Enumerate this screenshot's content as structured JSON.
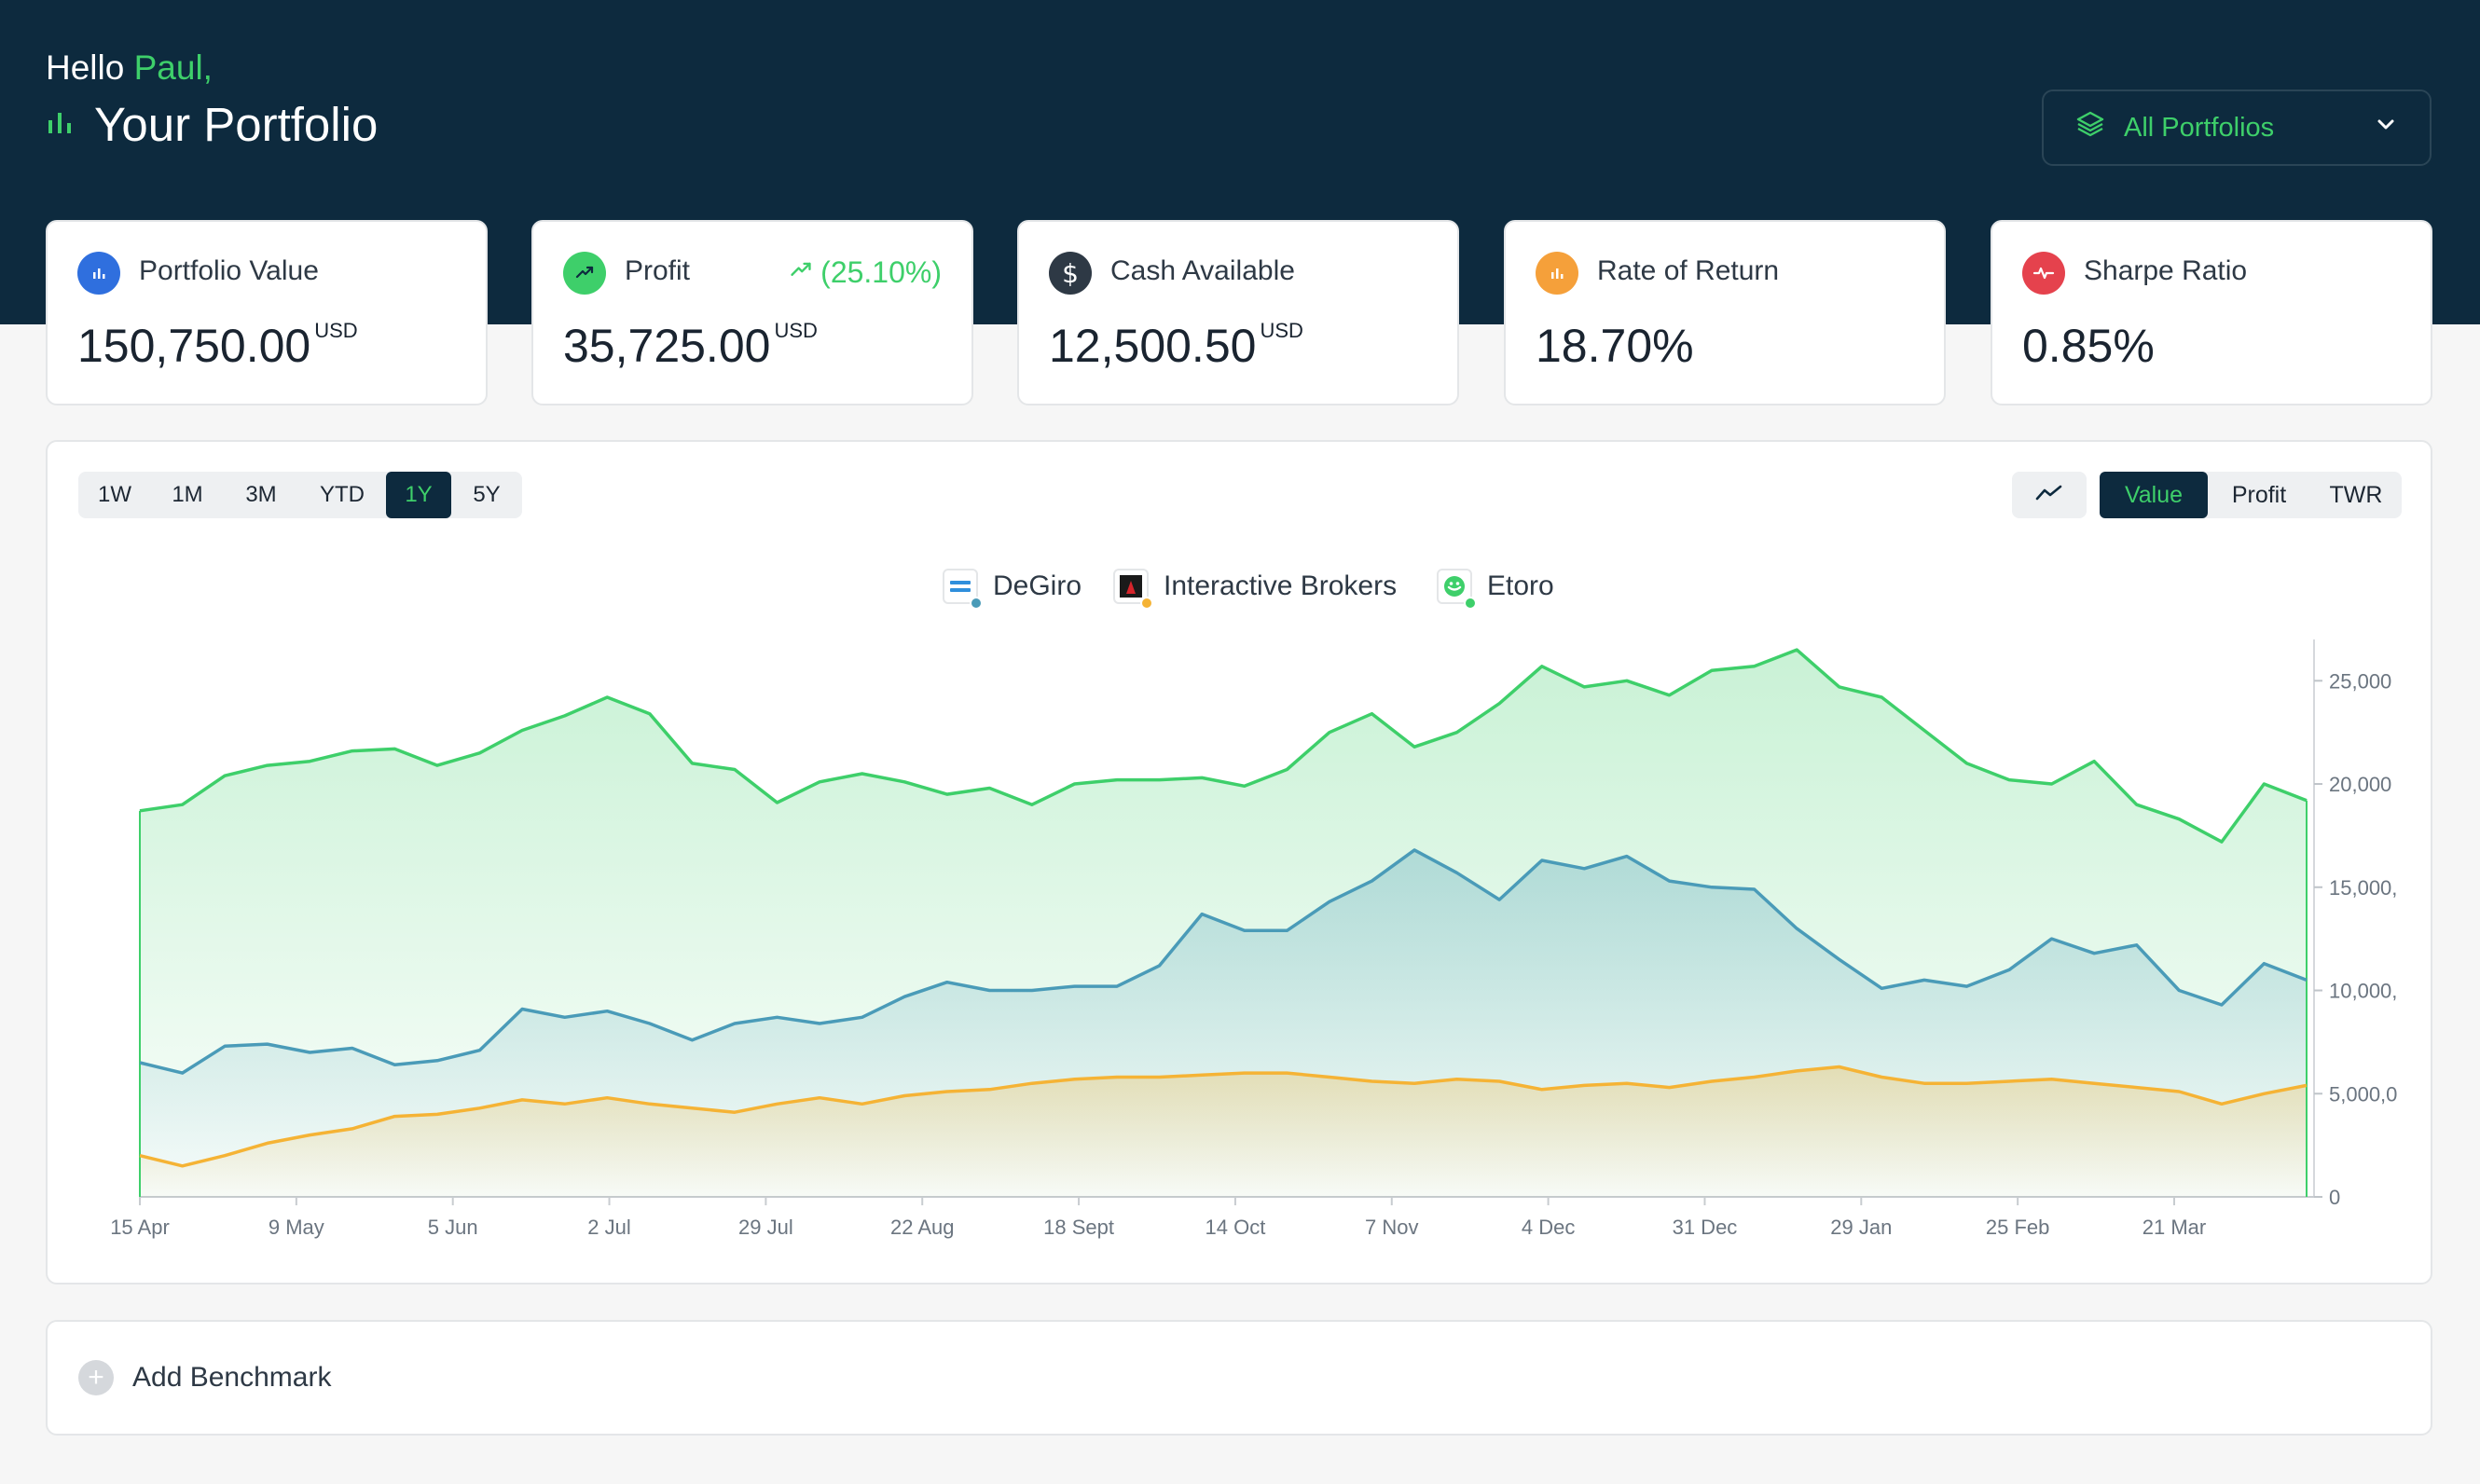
{
  "header": {
    "greeting_prefix": "Hello ",
    "user_name": "Paul,",
    "title": "Your Portfolio",
    "portfolio_selector": "All Portfolios"
  },
  "cards": [
    {
      "label": "Portfolio Value",
      "value": "150,750.00",
      "unit": "USD",
      "icon": "bar-chart-icon",
      "icon_color": "#2f6fde"
    },
    {
      "label": "Profit",
      "value": "35,725.00",
      "unit": "USD",
      "delta": "(25.10%)",
      "icon": "trend-up-icon",
      "icon_color": "#3ecf6a"
    },
    {
      "label": "Cash Available",
      "value": "12,500.50",
      "unit": "USD",
      "icon": "dollar-icon",
      "icon_color": "#2e3945"
    },
    {
      "label": "Rate of Return",
      "value": "18.70%",
      "icon": "bar-chart-icon",
      "icon_color": "#f5a03a"
    },
    {
      "label": "Sharpe Ratio",
      "value": "0.85%",
      "icon": "pulse-icon",
      "icon_color": "#e5424d"
    }
  ],
  "range_tabs": [
    "1W",
    "1M",
    "3M",
    "YTD",
    "1Y",
    "5Y"
  ],
  "active_range": "1Y",
  "metric_tabs": [
    "Value",
    "Profit",
    "TWR"
  ],
  "active_metric": "Value",
  "legend": [
    {
      "label": "DeGiro",
      "color": "#4a9bb8"
    },
    {
      "label": "Interactive Brokers",
      "color": "#f5b335"
    },
    {
      "label": "Etoro",
      "color": "#3ecf6a"
    }
  ],
  "benchmark_label": "Add Benchmark",
  "chart_data": {
    "type": "area",
    "x_labels": [
      "15 Apr",
      "9 May",
      "5 Jun",
      "2 Jul",
      "29 Jul",
      "22 Aug",
      "18 Sept",
      "14 Oct",
      "7 Nov",
      "4 Dec",
      "31 Dec",
      "29 Jan",
      "25 Feb",
      "21 Mar"
    ],
    "y_ticks": [
      "25,000",
      "20,000",
      "15,000,",
      "10,000,",
      "5,000,0",
      "0"
    ],
    "ylim": [
      0,
      27000
    ],
    "series": [
      {
        "name": "Etoro",
        "color": "#3ecf6a",
        "values": [
          18700,
          19000,
          20400,
          20900,
          21100,
          21600,
          21700,
          20900,
          21500,
          22600,
          23300,
          24200,
          23400,
          21000,
          20700,
          19100,
          20100,
          20500,
          20100,
          19500,
          19800,
          19000,
          20000,
          20200,
          20200,
          20300,
          19900,
          20700,
          22500,
          23400,
          21800,
          22500,
          23900,
          25700,
          24700,
          25000,
          24300,
          25500,
          25700,
          26500,
          24700,
          24200,
          22600,
          21000,
          20200,
          20000,
          21100,
          19000,
          18300,
          17200,
          20000,
          19200
        ]
      },
      {
        "name": "DeGiro",
        "color": "#4a9bb8",
        "values": [
          6500,
          6000,
          7300,
          7400,
          7000,
          7200,
          6400,
          6600,
          7100,
          9100,
          8700,
          9000,
          8400,
          7600,
          8400,
          8700,
          8400,
          8700,
          9700,
          10400,
          10000,
          10000,
          10200,
          10200,
          11200,
          13700,
          12900,
          12900,
          14300,
          15300,
          16800,
          15700,
          14400,
          16300,
          15900,
          16500,
          15300,
          15000,
          14900,
          13000,
          11500,
          10100,
          10500,
          10200,
          11000,
          12500,
          11800,
          12200,
          10000,
          9300,
          11300,
          10500
        ]
      },
      {
        "name": "Interactive Brokers",
        "color": "#f5b335",
        "values": [
          2000,
          1500,
          2000,
          2600,
          3000,
          3300,
          3900,
          4000,
          4300,
          4700,
          4500,
          4800,
          4500,
          4300,
          4100,
          4500,
          4800,
          4500,
          4900,
          5100,
          5200,
          5500,
          5700,
          5800,
          5800,
          5900,
          6000,
          6000,
          5800,
          5600,
          5500,
          5700,
          5600,
          5200,
          5400,
          5500,
          5300,
          5600,
          5800,
          6100,
          6300,
          5800,
          5500,
          5500,
          5600,
          5700,
          5500,
          5300,
          5100,
          4500,
          5000,
          5400
        ]
      }
    ]
  }
}
